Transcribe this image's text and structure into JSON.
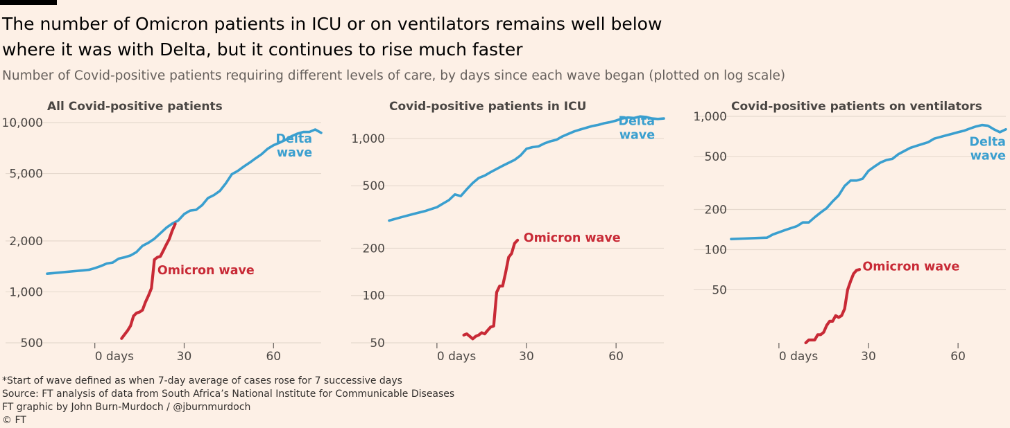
{
  "title": "The number of Omicron patients in ICU or on ventilators remains well below where it was with Delta, but it continues to rise much faster",
  "subtitle": "Number of Covid-positive patients requiring different levels of care, by days since each wave began (plotted on log scale)",
  "footer": {
    "note": "*Start of wave defined as when 7-day average of cases rose for 7 successive days",
    "source": "Source: FT analysis of data from South Africa’s National Institute for Communicable Diseases",
    "credit": "FT graphic by John Burn-Murdoch / @jburnmurdoch",
    "copyright": "© FT"
  },
  "colors": {
    "delta": "#3a9fcf",
    "omicron": "#c82a36",
    "grid": "#e6d9ce"
  },
  "chart_data": [
    {
      "type": "line",
      "title": "All Covid-positive patients",
      "scale": "log",
      "xlim": [
        -16,
        76
      ],
      "ylim": [
        500,
        10000
      ],
      "xticks": [
        0,
        30,
        60
      ],
      "xtick_labels": [
        "0 days",
        "30",
        "60"
      ],
      "yticks": [
        500,
        1000,
        2000,
        5000,
        10000
      ],
      "ytick_labels": [
        "500",
        "1,000",
        "2,000",
        "5,000",
        "10,000"
      ],
      "series": [
        {
          "name": "Delta wave",
          "label_lines": [
            "Delta",
            "wave"
          ],
          "color": "#3a9fcf",
          "x": [
            -16,
            -12,
            -8,
            -4,
            -2,
            0,
            2,
            4,
            6,
            8,
            10,
            12,
            14,
            16,
            18,
            20,
            22,
            24,
            26,
            28,
            30,
            32,
            34,
            36,
            38,
            40,
            42,
            44,
            46,
            48,
            50,
            52,
            54,
            56,
            58,
            60,
            62,
            64,
            66,
            68,
            70,
            72,
            74,
            76
          ],
          "y": [
            1280,
            1300,
            1320,
            1340,
            1350,
            1380,
            1420,
            1470,
            1490,
            1570,
            1600,
            1640,
            1720,
            1870,
            1950,
            2060,
            2220,
            2390,
            2530,
            2640,
            2880,
            3020,
            3050,
            3250,
            3580,
            3730,
            3950,
            4380,
            4950,
            5180,
            5500,
            5800,
            6150,
            6500,
            7000,
            7350,
            7600,
            7900,
            8300,
            8600,
            8800,
            8800,
            9100,
            8700
          ]
        },
        {
          "name": "Omicron wave",
          "label_lines": [
            "Omicron wave"
          ],
          "color": "#c82a36",
          "x": [
            9,
            10,
            11,
            12,
            13,
            14,
            15,
            16,
            17,
            18,
            19,
            20,
            21,
            22,
            23,
            24,
            25,
            26,
            27
          ],
          "y": [
            530,
            560,
            590,
            630,
            720,
            750,
            760,
            780,
            870,
            950,
            1050,
            1550,
            1600,
            1620,
            1750,
            1900,
            2050,
            2300,
            2520
          ]
        }
      ]
    },
    {
      "type": "line",
      "title": "Covid-positive patients in ICU",
      "scale": "log",
      "xlim": [
        -16,
        76
      ],
      "ylim": [
        50,
        1500
      ],
      "xticks": [
        0,
        30,
        60
      ],
      "xtick_labels": [
        "0 days",
        "30",
        "60"
      ],
      "yticks": [
        50,
        100,
        200,
        500,
        1000
      ],
      "ytick_labels": [
        "50",
        "100",
        "200",
        "500",
        "1,000"
      ],
      "series": [
        {
          "name": "Delta wave",
          "label_lines": [
            "Delta",
            "wave"
          ],
          "color": "#3a9fcf",
          "x": [
            -16,
            -12,
            -8,
            -4,
            -2,
            0,
            2,
            4,
            6,
            8,
            10,
            12,
            14,
            16,
            18,
            20,
            22,
            24,
            26,
            28,
            30,
            32,
            34,
            36,
            38,
            40,
            42,
            44,
            46,
            48,
            50,
            52,
            54,
            56,
            58,
            60,
            62,
            64,
            66,
            68,
            70,
            72,
            74,
            76
          ],
          "y": [
            300,
            315,
            330,
            345,
            355,
            365,
            385,
            405,
            440,
            430,
            475,
            520,
            560,
            580,
            610,
            640,
            670,
            700,
            730,
            780,
            860,
            880,
            890,
            930,
            960,
            980,
            1030,
            1070,
            1110,
            1140,
            1170,
            1200,
            1220,
            1250,
            1270,
            1300,
            1340,
            1360,
            1350,
            1380,
            1370,
            1340,
            1330,
            1340
          ]
        },
        {
          "name": "Omicron wave",
          "label_lines": [
            "Omicron wave"
          ],
          "color": "#c82a36",
          "x": [
            9,
            10,
            11,
            12,
            13,
            14,
            15,
            16,
            17,
            18,
            19,
            20,
            21,
            22,
            23,
            24,
            25,
            26,
            27
          ],
          "y": [
            56,
            57,
            55,
            53,
            55,
            56,
            58,
            57,
            60,
            63,
            64,
            105,
            115,
            115,
            140,
            175,
            185,
            215,
            225
          ]
        }
      ]
    },
    {
      "type": "line",
      "title": "Covid-positive patients on ventilators",
      "scale": "log",
      "xlim": [
        -16,
        76
      ],
      "ylim": [
        20,
        1000
      ],
      "xticks": [
        0,
        30,
        60
      ],
      "xtick_labels": [
        "0 days",
        "30",
        "60"
      ],
      "yticks": [
        50,
        100,
        200,
        500,
        1000
      ],
      "ytick_labels": [
        "50",
        "100",
        "200",
        "500",
        "1,000"
      ],
      "series": [
        {
          "name": "Delta wave",
          "label_lines": [
            "Delta",
            "wave"
          ],
          "color": "#3a9fcf",
          "x": [
            -16,
            -12,
            -8,
            -4,
            -2,
            0,
            2,
            4,
            6,
            8,
            10,
            12,
            14,
            16,
            18,
            20,
            22,
            24,
            26,
            28,
            30,
            32,
            34,
            36,
            38,
            40,
            42,
            44,
            46,
            48,
            50,
            52,
            54,
            56,
            58,
            60,
            62,
            64,
            66,
            68,
            70,
            72,
            74,
            76
          ],
          "y": [
            120,
            121,
            122,
            123,
            130,
            135,
            140,
            145,
            150,
            160,
            160,
            175,
            190,
            205,
            230,
            255,
            300,
            330,
            330,
            340,
            390,
            420,
            450,
            470,
            480,
            520,
            550,
            580,
            600,
            620,
            640,
            680,
            700,
            720,
            740,
            760,
            780,
            810,
            840,
            860,
            850,
            800,
            760,
            800
          ]
        },
        {
          "name": "Omicron wave",
          "label_lines": [
            "Omicron wave"
          ],
          "color": "#c82a36",
          "x": [
            9,
            10,
            11,
            12,
            13,
            14,
            15,
            16,
            17,
            18,
            19,
            20,
            21,
            22,
            23,
            24,
            25,
            26,
            27
          ],
          "y": [
            20,
            21,
            21,
            21,
            23,
            23,
            24,
            27,
            29,
            29,
            32,
            31,
            32,
            36,
            50,
            58,
            66,
            70,
            71
          ]
        }
      ]
    }
  ]
}
